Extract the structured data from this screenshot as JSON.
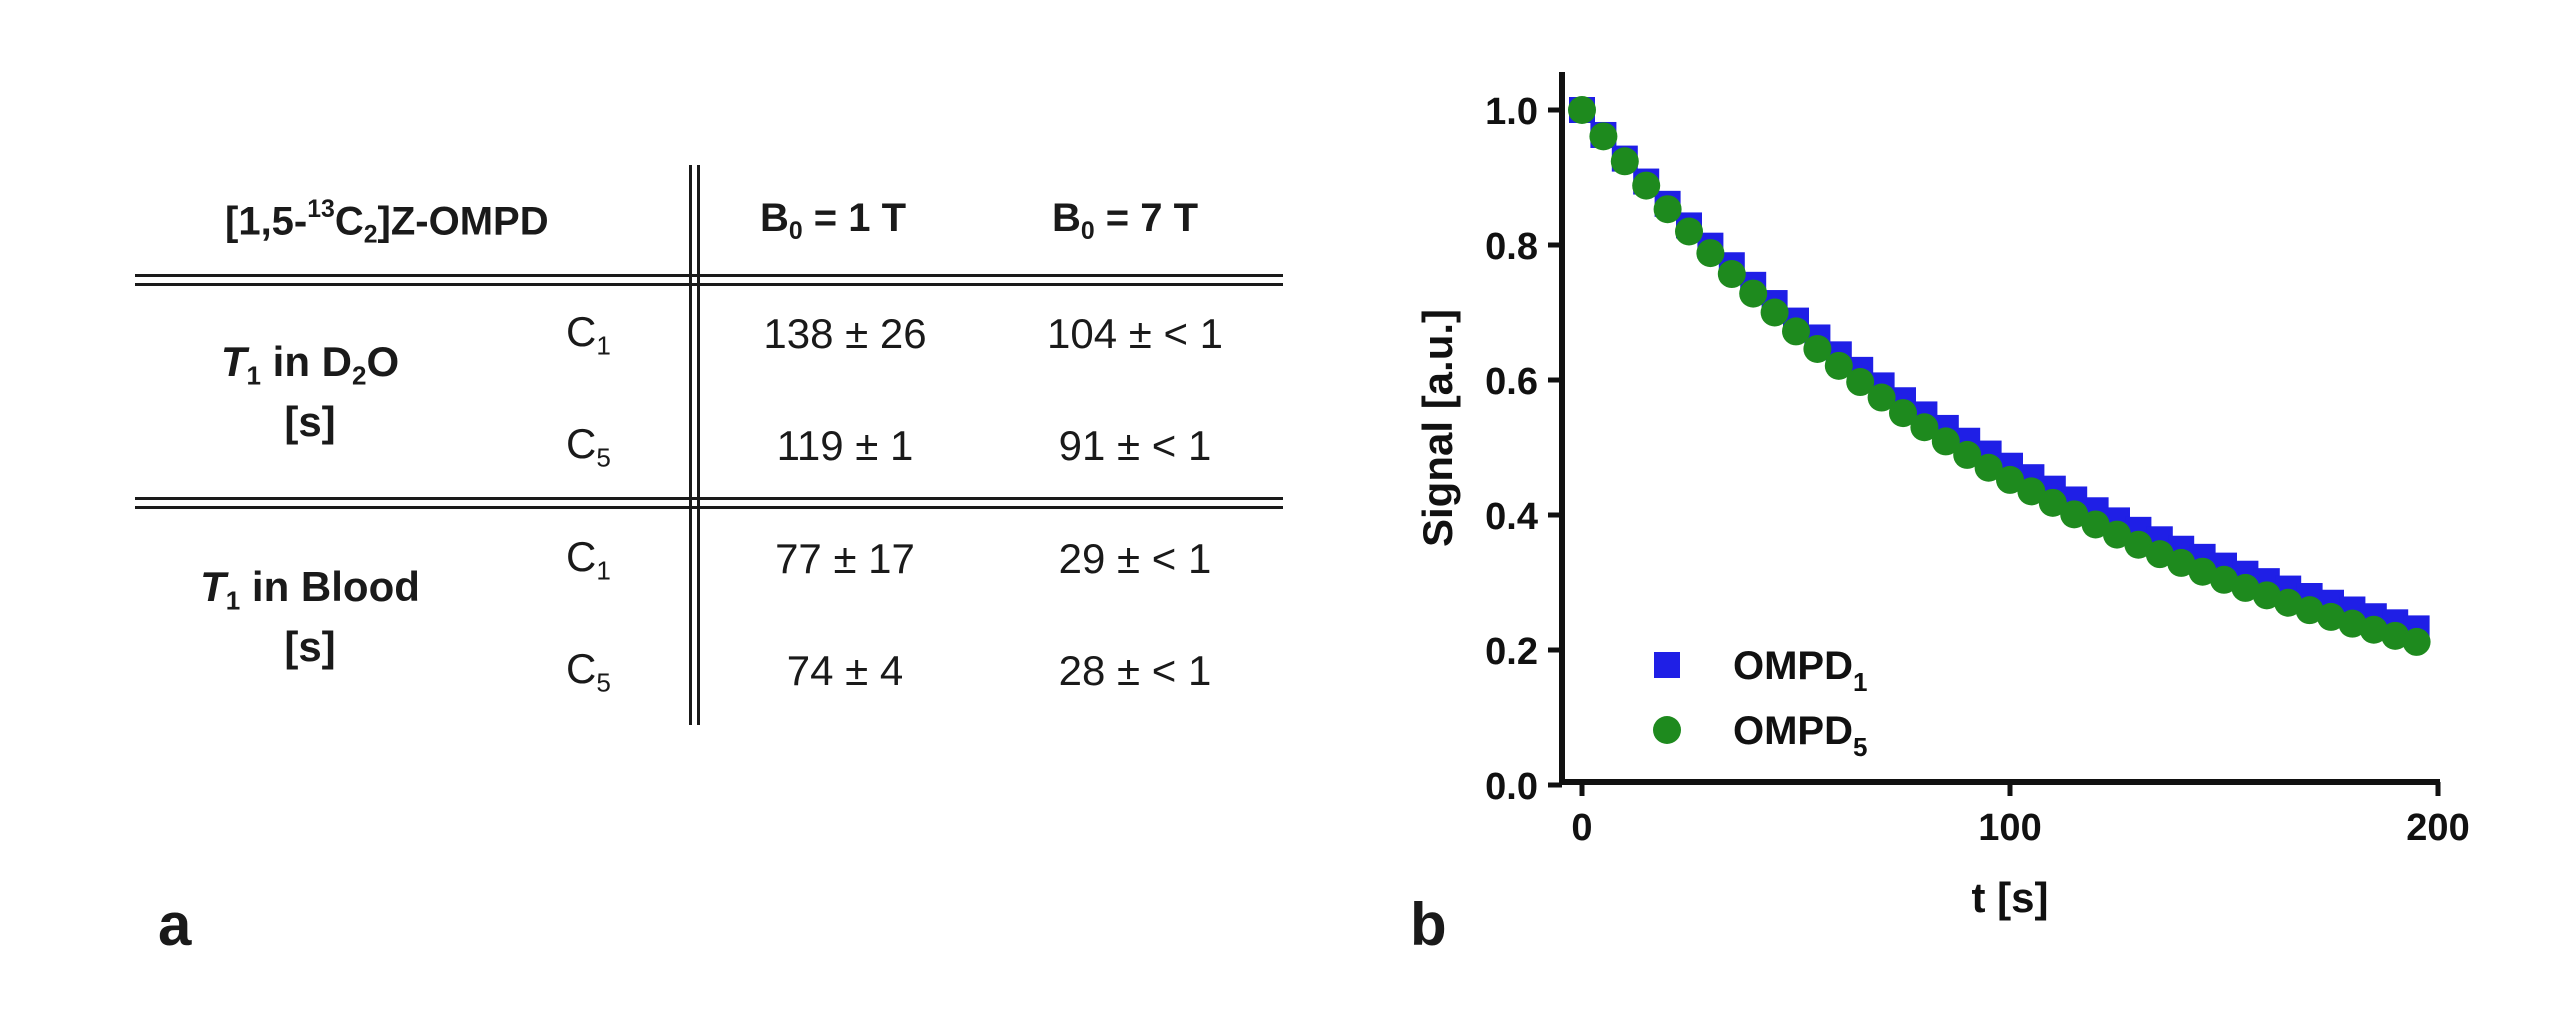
{
  "table": {
    "title_prefix": "[1,5-",
    "title_sup": "13",
    "title_mid": "C",
    "title_sub": "2",
    "title_suffix": "]Z-OMPD",
    "col1": {
      "main": "B",
      "sub": "0",
      "rest": " = 1 T"
    },
    "col2": {
      "main": "B",
      "sub": "0",
      "rest": " = 7 T"
    },
    "groups": [
      {
        "label_var": "T",
        "label_var_sub": "1",
        "label_text": " in D",
        "label_text_sub": "2",
        "label_text_end": "O",
        "unit": "[s]",
        "rows": [
          {
            "nucleus": "C",
            "nucleus_sub": "1",
            "v1": "138 ± 26",
            "v2": "104 ± < 1"
          },
          {
            "nucleus": "C",
            "nucleus_sub": "5",
            "v1": "119 ± 1",
            "v2": "91 ± < 1"
          }
        ]
      },
      {
        "label_var": "T",
        "label_var_sub": "1",
        "label_text": " in Blood",
        "unit": "[s]",
        "rows": [
          {
            "nucleus": "C",
            "nucleus_sub": "1",
            "v1": "77 ± 17",
            "v2": "29 ± < 1"
          },
          {
            "nucleus": "C",
            "nucleus_sub": "5",
            "v1": "74 ± 4",
            "v2": "28 ± < 1"
          }
        ]
      }
    ]
  },
  "panel_labels": {
    "a": "a",
    "b": "b"
  },
  "chart_data": {
    "type": "scatter",
    "title": "",
    "xlabel": "t [s]",
    "ylabel": "Signal [a.u.]",
    "xlim": [
      0,
      200
    ],
    "ylim": [
      0,
      1.05
    ],
    "xticks": [
      "0",
      "100",
      "200"
    ],
    "yticks": [
      "0.0",
      "0.2",
      "0.4",
      "0.6",
      "0.8",
      "1.0"
    ],
    "legend_position": "bottom-left",
    "series": [
      {
        "name": "OMPD",
        "name_sub": "1",
        "marker": "square",
        "color": "#1f1fe6",
        "x": [
          0,
          5,
          10,
          15,
          20,
          25,
          30,
          35,
          40,
          45,
          50,
          55,
          60,
          65,
          70,
          75,
          80,
          85,
          90,
          95,
          100,
          105,
          110,
          115,
          120,
          125,
          130,
          135,
          140,
          145,
          150,
          155,
          160,
          165,
          170,
          175,
          180,
          185,
          190,
          195
        ],
        "y": [
          1.0,
          0.963,
          0.928,
          0.894,
          0.861,
          0.829,
          0.799,
          0.77,
          0.741,
          0.714,
          0.688,
          0.663,
          0.638,
          0.615,
          0.592,
          0.57,
          0.549,
          0.529,
          0.51,
          0.491,
          0.473,
          0.456,
          0.439,
          0.423,
          0.407,
          0.392,
          0.378,
          0.364,
          0.35,
          0.338,
          0.325,
          0.313,
          0.302,
          0.291,
          0.28,
          0.27,
          0.26,
          0.25,
          0.241,
          0.232
        ]
      },
      {
        "name": "OMPD",
        "name_sub": "5",
        "marker": "circle",
        "color": "#1e8a1e",
        "x": [
          0,
          5,
          10,
          15,
          20,
          25,
          30,
          35,
          40,
          45,
          50,
          55,
          60,
          65,
          70,
          75,
          80,
          85,
          90,
          95,
          100,
          105,
          110,
          115,
          120,
          125,
          130,
          135,
          140,
          145,
          150,
          155,
          160,
          165,
          170,
          175,
          180,
          185,
          190,
          195
        ],
        "y": [
          1.0,
          0.961,
          0.924,
          0.888,
          0.853,
          0.82,
          0.788,
          0.757,
          0.728,
          0.7,
          0.672,
          0.646,
          0.621,
          0.597,
          0.574,
          0.551,
          0.53,
          0.509,
          0.489,
          0.47,
          0.452,
          0.435,
          0.418,
          0.401,
          0.386,
          0.371,
          0.356,
          0.342,
          0.329,
          0.316,
          0.304,
          0.292,
          0.281,
          0.27,
          0.259,
          0.249,
          0.239,
          0.23,
          0.221,
          0.212
        ]
      }
    ]
  }
}
